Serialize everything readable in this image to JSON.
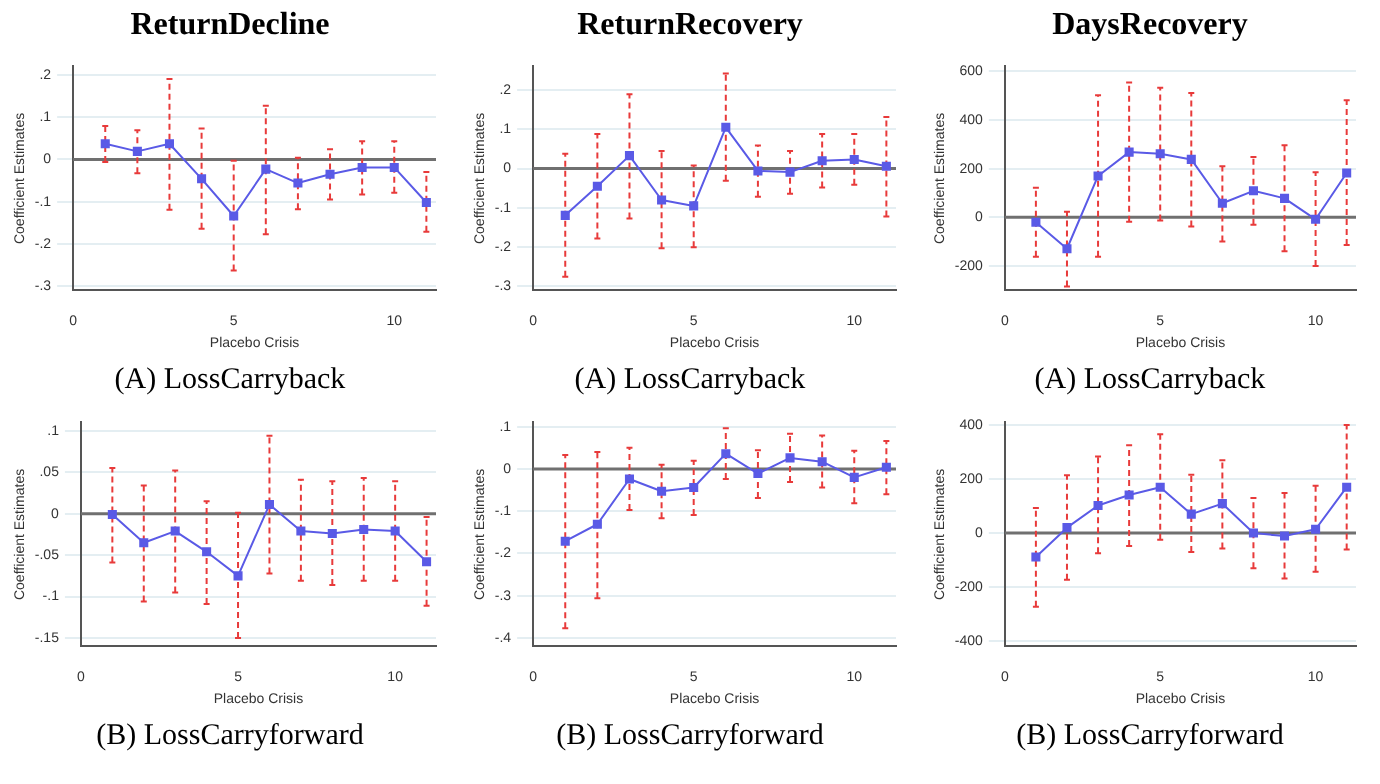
{
  "chart_data": [
    {
      "type": "line",
      "title": "ReturnDecline",
      "xlabel": "Placebo Crisis",
      "ylabel": "Coefficient Estimates",
      "annotations": [
        "(A) LossCarryback"
      ],
      "x": [
        1,
        2,
        3,
        4,
        5,
        6,
        7,
        8,
        9,
        10,
        11
      ],
      "xlim": [
        0,
        11.3
      ],
      "xticks": [
        0,
        5,
        10
      ],
      "ylim": [
        -0.31,
        0.22
      ],
      "yticks": [
        {
          "value": 0.2,
          "label": ".2"
        },
        {
          "value": 0.1,
          "label": ".1"
        },
        0,
        {
          "value": -0.1,
          "label": "-.1"
        },
        {
          "value": -0.2,
          "label": "-.2"
        },
        {
          "value": -0.3,
          "label": "-.3"
        }
      ],
      "grid": "y",
      "marker": "square",
      "ref_lines": [
        {
          "axis": "y",
          "value": 0,
          "color": "#707070"
        }
      ],
      "series": [
        {
          "color": "#5a5ae6",
          "values": [
            0.037,
            0.019,
            0.037,
            -0.046,
            -0.134,
            -0.023,
            -0.056,
            -0.035,
            -0.019,
            -0.019,
            -0.102
          ],
          "errors": [
            [
              -0.006,
              0.079
            ],
            [
              -0.033,
              0.069
            ],
            [
              -0.119,
              0.19
            ],
            [
              -0.164,
              0.073
            ],
            [
              -0.263,
              -0.003
            ],
            [
              -0.177,
              0.127
            ],
            [
              -0.118,
              0.004
            ],
            [
              -0.095,
              0.024
            ],
            [
              -0.083,
              0.043
            ],
            [
              -0.079,
              0.043
            ],
            [
              -0.171,
              -0.03
            ]
          ]
        }
      ]
    },
    {
      "type": "line",
      "title": "ReturnRecovery",
      "xlabel": "Placebo Crisis",
      "ylabel": "Coefficient Estimates",
      "annotations": [
        "(A) LossCarryback"
      ],
      "x": [
        1,
        2,
        3,
        4,
        5,
        6,
        7,
        8,
        9,
        10,
        11
      ],
      "xlim": [
        0,
        11.3
      ],
      "xticks": [
        0,
        5,
        10
      ],
      "ylim": [
        -0.31,
        0.26
      ],
      "yticks": [
        {
          "value": 0.2,
          "label": ".2"
        },
        {
          "value": 0.1,
          "label": ".1"
        },
        0,
        {
          "value": -0.1,
          "label": "-.1"
        },
        {
          "value": -0.2,
          "label": "-.2"
        },
        {
          "value": -0.3,
          "label": "-.3"
        }
      ],
      "grid": "y",
      "marker": "square",
      "ref_lines": [
        {
          "axis": "y",
          "value": 0,
          "color": "#707070"
        }
      ],
      "series": [
        {
          "color": "#5a5ae6",
          "values": [
            -0.119,
            -0.045,
            0.033,
            -0.08,
            -0.095,
            0.105,
            -0.006,
            -0.009,
            0.02,
            0.023,
            0.006
          ],
          "errors": [
            [
              -0.275,
              0.038
            ],
            [
              -0.178,
              0.088
            ],
            [
              -0.127,
              0.189
            ],
            [
              -0.203,
              0.045
            ],
            [
              -0.2,
              0.008
            ],
            [
              -0.031,
              0.242
            ],
            [
              -0.072,
              0.059
            ],
            [
              -0.064,
              0.045
            ],
            [
              -0.048,
              0.088
            ],
            [
              -0.041,
              0.088
            ],
            [
              -0.122,
              0.131
            ]
          ]
        }
      ]
    },
    {
      "type": "line",
      "title": "DaysRecovery",
      "xlabel": "Placebo Crisis",
      "ylabel": "Coefficient Estimates",
      "annotations": [
        "(A) LossCarryback"
      ],
      "x": [
        1,
        2,
        3,
        4,
        5,
        6,
        7,
        8,
        9,
        10,
        11
      ],
      "xlim": [
        0,
        11.3
      ],
      "xticks": [
        0,
        5,
        10
      ],
      "ylim": [
        -300,
        620
      ],
      "yticks": [
        600,
        400,
        200,
        0,
        -200
      ],
      "grid": "y",
      "marker": "square",
      "ref_lines": [
        {
          "axis": "y",
          "value": 0,
          "color": "#707070"
        }
      ],
      "series": [
        {
          "color": "#5a5ae6",
          "values": [
            -20,
            -129,
            170,
            268,
            261,
            238,
            58,
            109,
            78,
            -8,
            182
          ],
          "errors": [
            [
              -162,
              122
            ],
            [
              -284,
              23
            ],
            [
              -162,
              501
            ],
            [
              -18,
              554
            ],
            [
              -13,
              532
            ],
            [
              -38,
              511
            ],
            [
              -99,
              210
            ],
            [
              -30,
              248
            ],
            [
              -139,
              296
            ],
            [
              -200,
              185
            ],
            [
              -114,
              481
            ]
          ]
        }
      ]
    },
    {
      "type": "line",
      "xlabel": "Placebo Crisis",
      "ylabel": "Coefficient Estimates",
      "annotations": [
        "(B) LossCarryforward"
      ],
      "x": [
        1,
        2,
        3,
        4,
        5,
        6,
        7,
        8,
        9,
        10,
        11
      ],
      "xlim": [
        0,
        11.3
      ],
      "xticks": [
        0,
        5,
        10
      ],
      "ylim": [
        -0.16,
        0.11
      ],
      "yticks": [
        {
          "value": 0.1,
          "label": ".1"
        },
        {
          "value": 0.05,
          "label": ".05"
        },
        0,
        {
          "value": -0.05,
          "label": "-.05"
        },
        {
          "value": -0.1,
          "label": "-.1"
        },
        {
          "value": -0.15,
          "label": "-.15"
        }
      ],
      "grid": "y",
      "marker": "square",
      "ref_lines": [
        {
          "axis": "y",
          "value": 0,
          "color": "#707070"
        }
      ],
      "series": [
        {
          "color": "#5a5ae6",
          "values": [
            -0.001,
            -0.035,
            -0.021,
            -0.046,
            -0.075,
            0.011,
            -0.021,
            -0.024,
            -0.019,
            -0.021,
            -0.058
          ],
          "errors": [
            [
              -0.059,
              0.055
            ],
            [
              -0.106,
              0.034
            ],
            [
              -0.095,
              0.052
            ],
            [
              -0.109,
              0.015
            ],
            [
              -0.15,
              0.001
            ],
            [
              -0.072,
              0.094
            ],
            [
              -0.081,
              0.041
            ],
            [
              -0.086,
              0.039
            ],
            [
              -0.081,
              0.043
            ],
            [
              -0.081,
              0.039
            ],
            [
              -0.111,
              -0.004
            ]
          ]
        }
      ]
    },
    {
      "type": "line",
      "xlabel": "Placebo Crisis",
      "ylabel": "Coefficient Estimates",
      "annotations": [
        "(B) LossCarryforward"
      ],
      "x": [
        1,
        2,
        3,
        4,
        5,
        6,
        7,
        8,
        9,
        10,
        11
      ],
      "xlim": [
        0,
        11.3
      ],
      "xticks": [
        0,
        5,
        10
      ],
      "ylim": [
        -0.42,
        0.11
      ],
      "yticks": [
        {
          "value": 0.1,
          "label": ".1"
        },
        0,
        {
          "value": -0.1,
          "label": "-.1"
        },
        {
          "value": -0.2,
          "label": "-.2"
        },
        {
          "value": -0.3,
          "label": "-.3"
        },
        {
          "value": -0.4,
          "label": "-.4"
        }
      ],
      "grid": "y",
      "marker": "square",
      "ref_lines": [
        {
          "axis": "y",
          "value": 0,
          "color": "#707070"
        }
      ],
      "series": [
        {
          "color": "#5a5ae6",
          "values": [
            -0.171,
            -0.131,
            -0.024,
            -0.053,
            -0.044,
            0.036,
            -0.011,
            0.026,
            0.017,
            -0.02,
            0.004
          ],
          "errors": [
            [
              -0.377,
              0.033
            ],
            [
              -0.306,
              0.04
            ],
            [
              -0.097,
              0.05
            ],
            [
              -0.117,
              0.01
            ],
            [
              -0.109,
              0.019
            ],
            [
              -0.024,
              0.096
            ],
            [
              -0.069,
              0.044
            ],
            [
              -0.031,
              0.083
            ],
            [
              -0.044,
              0.079
            ],
            [
              -0.081,
              0.043
            ],
            [
              -0.06,
              0.066
            ]
          ]
        }
      ]
    },
    {
      "type": "line",
      "xlabel": "Placebo Crisis",
      "ylabel": "Coefficient Estimates",
      "annotations": [
        "(B) LossCarryforward"
      ],
      "x": [
        1,
        2,
        3,
        4,
        5,
        6,
        7,
        8,
        9,
        10,
        11
      ],
      "xlim": [
        0,
        11.3
      ],
      "xticks": [
        0,
        5,
        10
      ],
      "ylim": [
        -420,
        410
      ],
      "yticks": [
        400,
        200,
        0,
        -200,
        -400
      ],
      "grid": "y",
      "marker": "square",
      "ref_lines": [
        {
          "axis": "y",
          "value": 0,
          "color": "#707070"
        }
      ],
      "series": [
        {
          "color": "#5a5ae6",
          "values": [
            -89,
            20,
            102,
            141,
            170,
            70,
            109,
            0,
            -11,
            14,
            170
          ],
          "errors": [
            [
              -273,
              93
            ],
            [
              -173,
              214
            ],
            [
              -75,
              284
            ],
            [
              -48,
              325
            ],
            [
              -25,
              366
            ],
            [
              -70,
              216
            ],
            [
              -57,
              270
            ],
            [
              -130,
              130
            ],
            [
              -168,
              148
            ],
            [
              -143,
              175
            ],
            [
              -61,
              400
            ]
          ]
        }
      ]
    }
  ]
}
